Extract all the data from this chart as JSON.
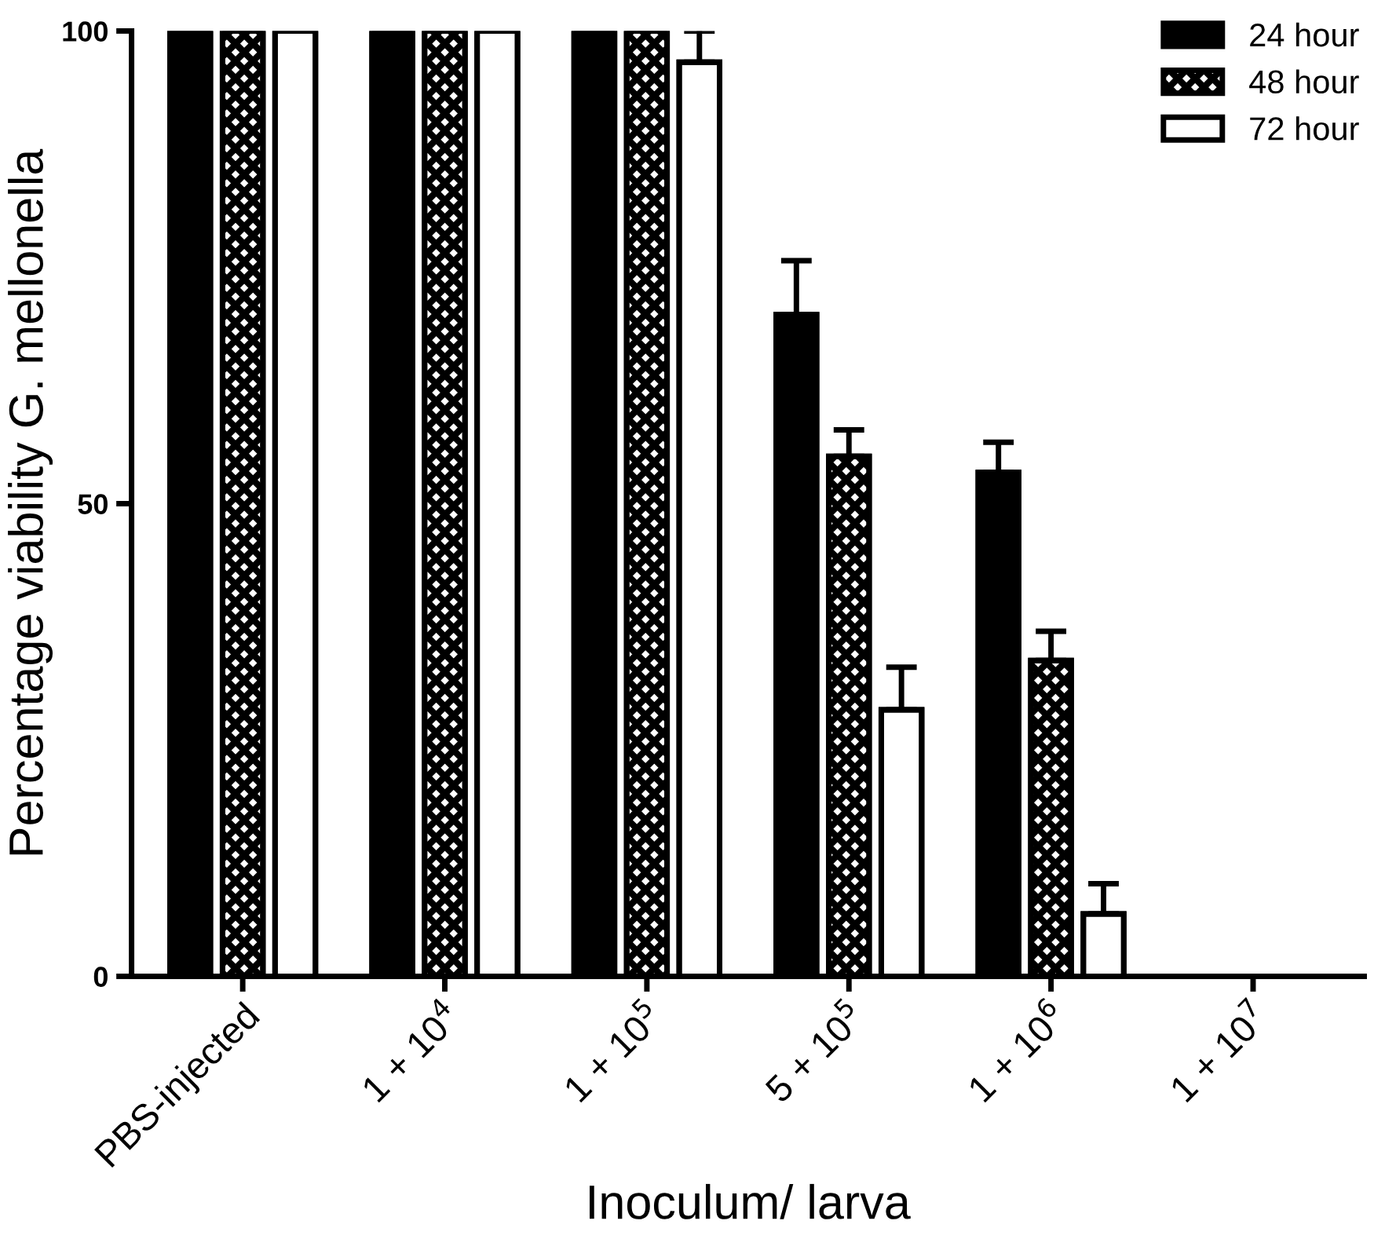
{
  "chart_data": {
    "type": "bar",
    "xlabel": "Inoculum/ larva",
    "ylabel": "Percentage viability G. mellonella",
    "categories": [
      "PBS-injected",
      "1 + 10$^{4}$",
      "1 + 10$^{5}$",
      "5 + 10$^{5}$",
      "1 + 10$^{6}$",
      "1 + 10$^{7}$"
    ],
    "series": [
      {
        "name": "24 hour",
        "color": "#000000",
        "values": [
          100,
          100,
          100,
          70,
          53.3,
          0
        ],
        "errors": [
          null,
          null,
          null,
          [
            70,
            75.7
          ],
          [
            53.3,
            56.5
          ],
          null
        ]
      },
      {
        "name": "48 hour",
        "color": "#000000",
        "values": [
          100,
          100,
          100,
          55,
          33.4,
          0
        ],
        "errors": [
          null,
          null,
          null,
          [
            55,
            57.8
          ],
          [
            33.4,
            36.5
          ],
          null
        ]
      },
      {
        "name": "72 hour",
        "color": "#ffffff",
        "values": [
          100,
          100,
          96.7,
          28.2,
          6.6,
          0
        ],
        "errors": [
          null,
          null,
          [
            96.7,
            100
          ],
          [
            28.2,
            32.7
          ],
          [
            6.6,
            9.8
          ],
          null
        ]
      }
    ],
    "ylim": [
      0,
      100
    ],
    "yticks": [
      0,
      50,
      100
    ],
    "grid": false,
    "legend": "top right"
  }
}
